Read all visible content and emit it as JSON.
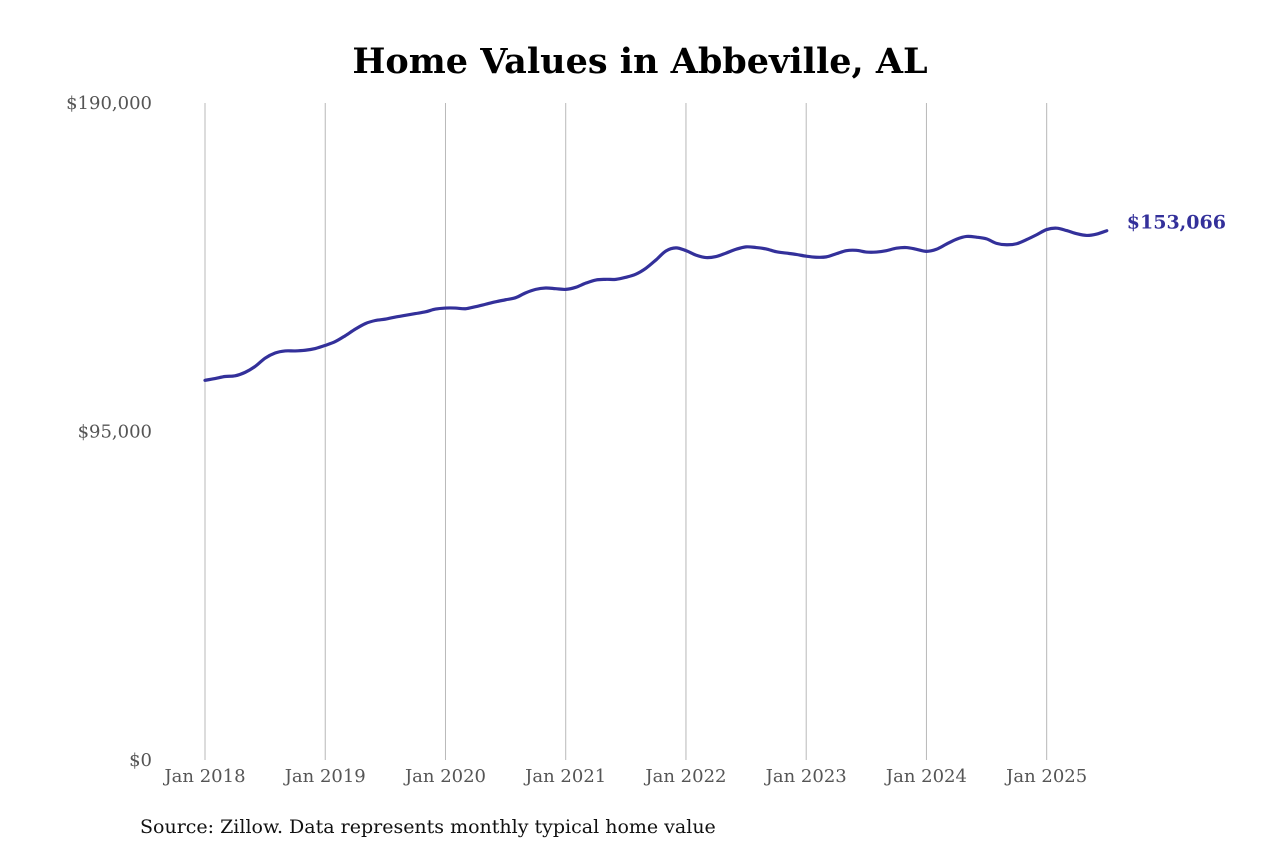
{
  "chart_data": {
    "type": "line",
    "title": "Home Values in Abbeville, AL",
    "source": "Source: Zillow. Data represents monthly typical home value",
    "xlabel": "",
    "ylabel": "",
    "x_start": "2018-01",
    "x_ticks": [
      "Jan 2018",
      "Jan 2019",
      "Jan 2020",
      "Jan 2021",
      "Jan 2022",
      "Jan 2023",
      "Jan 2024",
      "Jan 2025"
    ],
    "y_ticks": [
      {
        "value": 190000,
        "label": "$190,000"
      },
      {
        "value": 95000,
        "label": "$95,000"
      },
      {
        "value": 0,
        "label": "$0"
      }
    ],
    "ylim": [
      0,
      190000
    ],
    "grid": "vertical lines at x ticks",
    "line_color": "#33309a",
    "grid_color": "#b8b8b8",
    "end_label": "$153,066",
    "series": [
      {
        "x": [
          "2018-01",
          "2018-02",
          "2018-03",
          "2018-04",
          "2018-05",
          "2018-06",
          "2018-07",
          "2018-08",
          "2018-09",
          "2018-10",
          "2018-11",
          "2018-12",
          "2019-01",
          "2019-02",
          "2019-03",
          "2019-04",
          "2019-05",
          "2019-06",
          "2019-07",
          "2019-08",
          "2019-09",
          "2019-10",
          "2019-11",
          "2019-12",
          "2020-01",
          "2020-02",
          "2020-03",
          "2020-04",
          "2020-05",
          "2020-06",
          "2020-07",
          "2020-08",
          "2020-09",
          "2020-10",
          "2020-11",
          "2020-12",
          "2021-01",
          "2021-02",
          "2021-03",
          "2021-04",
          "2021-05",
          "2021-06",
          "2021-07",
          "2021-08",
          "2021-09",
          "2021-10",
          "2021-11",
          "2021-12",
          "2022-01",
          "2022-02",
          "2022-03",
          "2022-04",
          "2022-05",
          "2022-06",
          "2022-07",
          "2022-08",
          "2022-09",
          "2022-10",
          "2022-11",
          "2022-12",
          "2023-01",
          "2023-02",
          "2023-03",
          "2023-04",
          "2023-05",
          "2023-06",
          "2023-07",
          "2023-08",
          "2023-09",
          "2023-10",
          "2023-11",
          "2023-12",
          "2024-01",
          "2024-02",
          "2024-03",
          "2024-04",
          "2024-05",
          "2024-06",
          "2024-07",
          "2024-08",
          "2024-09",
          "2024-10",
          "2024-11",
          "2024-12",
          "2025-01",
          "2025-02",
          "2025-03",
          "2025-04",
          "2025-05",
          "2025-06",
          "2025-07"
        ],
        "values": [
          109800,
          110300,
          110900,
          111100,
          112100,
          113800,
          116200,
          117700,
          118300,
          118300,
          118500,
          119000,
          119900,
          121000,
          122700,
          124600,
          126200,
          127100,
          127500,
          128100,
          128600,
          129100,
          129600,
          130400,
          130700,
          130700,
          130500,
          131100,
          131800,
          132500,
          133100,
          133700,
          135100,
          136100,
          136500,
          136300,
          136100,
          136700,
          137900,
          138800,
          139000,
          139000,
          139600,
          140500,
          142200,
          144600,
          147200,
          148100,
          147300,
          146000,
          145300,
          145600,
          146600,
          147700,
          148400,
          148200,
          147800,
          147000,
          146600,
          146200,
          145700,
          145400,
          145500,
          146400,
          147300,
          147400,
          146900,
          146900,
          147300,
          148000,
          148200,
          147700,
          147100,
          147700,
          149200,
          150600,
          151400,
          151200,
          150700,
          149400,
          149000,
          149300,
          150500,
          151900,
          153400,
          153800,
          153100,
          152200,
          151700,
          152100,
          153066
        ]
      }
    ]
  }
}
